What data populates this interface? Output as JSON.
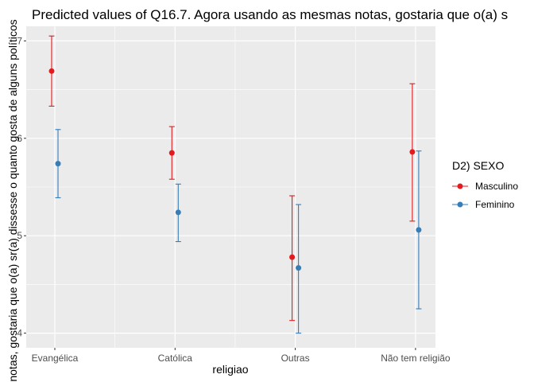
{
  "chart_data": {
    "type": "scatter",
    "subtype": "point-errorbar",
    "title": "Predicted values of Q16.7. Agora usando as mesmas notas, gostaria que o(a) s",
    "xlabel": "religiao",
    "ylabel": "notas, gostaria que o(a) sr(a) dissesse o quanto gosta de alguns políticos",
    "categories": [
      "Evangélica",
      "Católica",
      "Outras",
      "Não tem religião"
    ],
    "ylim": [
      3.85,
      7.15
    ],
    "yticks": [
      "4",
      "5",
      "6",
      "7"
    ],
    "grid": true,
    "legend": {
      "title": "D2) SEXO",
      "position": "right"
    },
    "series": [
      {
        "name": "Masculino",
        "color": "#e41a1c",
        "values": [
          6.69,
          5.85,
          4.78,
          5.86
        ],
        "lower": [
          6.33,
          5.58,
          4.13,
          5.15
        ],
        "upper": [
          7.05,
          6.12,
          5.41,
          6.56
        ]
      },
      {
        "name": "Feminino",
        "color": "#377eb8",
        "values": [
          5.74,
          5.24,
          4.67,
          5.06
        ],
        "lower": [
          5.39,
          4.94,
          4.0,
          4.25
        ],
        "upper": [
          6.09,
          5.53,
          5.32,
          5.87
        ]
      }
    ]
  }
}
